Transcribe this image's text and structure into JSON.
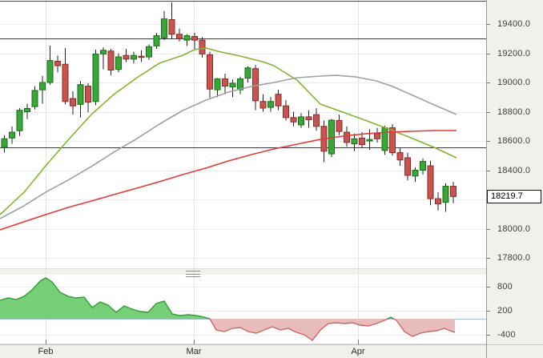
{
  "price_axis": {
    "last_price_label": "18219.7",
    "tick_values": [
      19400,
      19200,
      19000,
      18800,
      18600,
      18400,
      18200,
      18000,
      17800
    ],
    "tick_labels": [
      "19400.0",
      "19200.0",
      "19000.0",
      "18800.0",
      "18600.0",
      "18400.0",
      "",
      "18000.0",
      "17800.0"
    ]
  },
  "oscillator_axis": {
    "tick_values": [
      800,
      200,
      -400
    ],
    "tick_labels": [
      "800",
      "200",
      "-400"
    ]
  },
  "time_axis": {
    "labels": [
      "Feb",
      "Mar",
      "Apr"
    ]
  },
  "colors": {
    "background": "#ffffff",
    "axis_panel": "#f1f0ec",
    "axis_separator": "#9a9a96",
    "grid_h": "#ececec",
    "grid_v": "#e2e2e2",
    "frame": "#4a4a4a",
    "level_line": "#3b3b3b",
    "candle_up_fill": "#3aa63a",
    "candle_up_border": "#157015",
    "candle_down_fill": "#c75450",
    "candle_down_border": "#8f2a28",
    "wick": "#222222",
    "ma_fast": "#85b430",
    "ma_medium": "#a0a0a0",
    "ma_slow": "#e23b34",
    "osc_pos_fill": "#77d077",
    "osc_pos_line": "#2e9e2e",
    "osc_neg_fill": "#e9bcbc",
    "osc_neg_line": "#cc6666",
    "zero_line": "#9bbcdb",
    "axis_text": "#3f3f3f",
    "tick_mark": "#777777"
  },
  "chart_data": [
    {
      "type": "candlestick",
      "panel": "main",
      "title": "",
      "ylim": [
        17800,
        19400
      ],
      "grid": true,
      "last_price": 18219.7,
      "hlines": [
        19300,
        18555
      ],
      "months": [
        {
          "label": "Feb",
          "x": 57
        },
        {
          "label": "Mar",
          "x": 242
        },
        {
          "label": "Apr",
          "x": 447
        }
      ],
      "x_start": 5,
      "x_step": 9.5,
      "candles": [
        [
          18555,
          18640,
          18520,
          18615
        ],
        [
          18620,
          18700,
          18580,
          18660
        ],
        [
          18670,
          18825,
          18635,
          18810
        ],
        [
          18800,
          18855,
          18750,
          18822
        ],
        [
          18835,
          18975,
          18815,
          18945
        ],
        [
          18950,
          19045,
          18855,
          19000
        ],
        [
          19000,
          19252,
          18985,
          19150
        ],
        [
          19145,
          19185,
          19070,
          19115
        ],
        [
          19125,
          19235,
          18850,
          18870
        ],
        [
          18890,
          18940,
          18780,
          18840
        ],
        [
          18850,
          19010,
          18760,
          18985
        ],
        [
          18975,
          18995,
          18795,
          18865
        ],
        [
          18870,
          19225,
          18845,
          19195
        ],
        [
          19195,
          19240,
          19090,
          19220
        ],
        [
          19215,
          19230,
          19050,
          19085
        ],
        [
          19090,
          19200,
          19070,
          19175
        ],
        [
          19185,
          19230,
          19140,
          19160
        ],
        [
          19160,
          19210,
          19130,
          19185
        ],
        [
          19180,
          19220,
          19140,
          19175
        ],
        [
          19175,
          19260,
          19155,
          19245
        ],
        [
          19250,
          19340,
          19230,
          19320
        ],
        [
          19305,
          19490,
          19290,
          19435
        ],
        [
          19430,
          19548,
          19300,
          19330
        ],
        [
          19330,
          19370,
          19280,
          19300
        ],
        [
          19290,
          19330,
          19250,
          19320
        ],
        [
          19315,
          19340,
          19230,
          19290
        ],
        [
          19290,
          19310,
          19170,
          19195
        ],
        [
          19190,
          19210,
          18895,
          18955
        ],
        [
          18950,
          19030,
          18900,
          19025
        ],
        [
          19025,
          19060,
          18920,
          18975
        ],
        [
          18970,
          19020,
          18900,
          18995
        ],
        [
          18950,
          19040,
          18920,
          19025
        ],
        [
          19030,
          19110,
          19000,
          19100
        ],
        [
          19095,
          19120,
          18810,
          18875
        ],
        [
          18870,
          18920,
          18800,
          18825
        ],
        [
          18830,
          18900,
          18800,
          18870
        ],
        [
          18920,
          18950,
          18810,
          18840
        ],
        [
          18840,
          18880,
          18740,
          18760
        ],
        [
          18760,
          18800,
          18700,
          18730
        ],
        [
          18710,
          18790,
          18690,
          18765
        ],
        [
          18765,
          18810,
          18690,
          18745
        ],
        [
          18780,
          18825,
          18670,
          18700
        ],
        [
          18700,
          18740,
          18455,
          18530
        ],
        [
          18512,
          18750,
          18490,
          18742
        ],
        [
          18740,
          18780,
          18640,
          18665
        ],
        [
          18660,
          18700,
          18560,
          18590
        ],
        [
          18580,
          18650,
          18530,
          18615
        ],
        [
          18620,
          18660,
          18550,
          18575
        ],
        [
          18600,
          18680,
          18540,
          18610
        ],
        [
          18650,
          18690,
          18590,
          18615
        ],
        [
          18535,
          18705,
          18505,
          18690
        ],
        [
          18690,
          18715,
          18500,
          18520
        ],
        [
          18520,
          18555,
          18430,
          18470
        ],
        [
          18485,
          18520,
          18330,
          18365
        ],
        [
          18360,
          18420,
          18320,
          18400
        ],
        [
          18400,
          18480,
          18370,
          18460
        ],
        [
          18430,
          18465,
          18160,
          18205
        ],
        [
          18205,
          18250,
          18125,
          18170
        ],
        [
          18180,
          18310,
          18115,
          18290
        ],
        [
          18290,
          18320,
          18175,
          18220
        ]
      ],
      "series": [
        {
          "name": "ma-fast",
          "points": [
            [
              0,
              18096
            ],
            [
              30,
              18249
            ],
            [
              57,
              18430
            ],
            [
              85,
              18606
            ],
            [
              114,
              18781
            ],
            [
              142,
              18918
            ],
            [
              171,
              19033
            ],
            [
              199,
              19132
            ],
            [
              228,
              19186
            ],
            [
              243,
              19225
            ],
            [
              257,
              19236
            ],
            [
              271,
              19214
            ],
            [
              300,
              19181
            ],
            [
              328,
              19142
            ],
            [
              342,
              19115
            ],
            [
              371,
              19016
            ],
            [
              400,
              18852
            ],
            [
              428,
              18797
            ],
            [
              456,
              18742
            ],
            [
              485,
              18682
            ],
            [
              513,
              18622
            ],
            [
              542,
              18556
            ],
            [
              570,
              18485
            ]
          ]
        },
        {
          "name": "ma-medium",
          "points": [
            [
              0,
              18069
            ],
            [
              30,
              18156
            ],
            [
              57,
              18250
            ],
            [
              85,
              18332
            ],
            [
              114,
              18425
            ],
            [
              142,
              18523
            ],
            [
              171,
              18616
            ],
            [
              199,
              18715
            ],
            [
              228,
              18808
            ],
            [
              257,
              18879
            ],
            [
              285,
              18934
            ],
            [
              314,
              18973
            ],
            [
              342,
              19000
            ],
            [
              371,
              19033
            ],
            [
              400,
              19044
            ],
            [
              420,
              19049
            ],
            [
              445,
              19038
            ],
            [
              470,
              19011
            ],
            [
              490,
              18973
            ],
            [
              513,
              18918
            ],
            [
              542,
              18847
            ],
            [
              570,
              18781
            ]
          ]
        },
        {
          "name": "ma-slow",
          "points": [
            [
              0,
              17992
            ],
            [
              30,
              18047
            ],
            [
              57,
              18096
            ],
            [
              85,
              18145
            ],
            [
              114,
              18189
            ],
            [
              142,
              18233
            ],
            [
              171,
              18277
            ],
            [
              199,
              18321
            ],
            [
              228,
              18370
            ],
            [
              257,
              18414
            ],
            [
              285,
              18463
            ],
            [
              314,
              18507
            ],
            [
              342,
              18545
            ],
            [
              371,
              18578
            ],
            [
              400,
              18611
            ],
            [
              428,
              18633
            ],
            [
              456,
              18649
            ],
            [
              485,
              18660
            ],
            [
              513,
              18666
            ],
            [
              542,
              18671
            ],
            [
              570,
              18671
            ]
          ]
        }
      ]
    },
    {
      "type": "area",
      "panel": "lower",
      "title": "",
      "ylim": [
        -600,
        1100
      ],
      "zero_line": 0,
      "points": [
        [
          0,
          460
        ],
        [
          10,
          520
        ],
        [
          20,
          480
        ],
        [
          30,
          560
        ],
        [
          40,
          720
        ],
        [
          50,
          940
        ],
        [
          57,
          1020
        ],
        [
          65,
          920
        ],
        [
          75,
          660
        ],
        [
          85,
          560
        ],
        [
          95,
          520
        ],
        [
          105,
          540
        ],
        [
          115,
          280
        ],
        [
          125,
          420
        ],
        [
          135,
          340
        ],
        [
          145,
          160
        ],
        [
          155,
          320
        ],
        [
          165,
          240
        ],
        [
          175,
          180
        ],
        [
          185,
          160
        ],
        [
          195,
          380
        ],
        [
          205,
          440
        ],
        [
          215,
          120
        ],
        [
          225,
          80
        ],
        [
          235,
          100
        ],
        [
          245,
          80
        ],
        [
          255,
          40
        ],
        [
          262,
          0
        ],
        [
          270,
          -280
        ],
        [
          280,
          -320
        ],
        [
          290,
          -240
        ],
        [
          300,
          -220
        ],
        [
          310,
          -320
        ],
        [
          320,
          -360
        ],
        [
          330,
          -280
        ],
        [
          340,
          -200
        ],
        [
          350,
          -280
        ],
        [
          360,
          -240
        ],
        [
          370,
          -340
        ],
        [
          380,
          -400
        ],
        [
          390,
          -540
        ],
        [
          400,
          -280
        ],
        [
          410,
          -120
        ],
        [
          420,
          -100
        ],
        [
          430,
          -120
        ],
        [
          440,
          -100
        ],
        [
          450,
          -160
        ],
        [
          460,
          -180
        ],
        [
          470,
          -120
        ],
        [
          480,
          -40
        ],
        [
          488,
          40
        ],
        [
          495,
          -40
        ],
        [
          505,
          -320
        ],
        [
          515,
          -440
        ],
        [
          525,
          -360
        ],
        [
          535,
          -320
        ],
        [
          545,
          -300
        ],
        [
          555,
          -240
        ],
        [
          562,
          -300
        ],
        [
          568,
          -340
        ]
      ]
    }
  ]
}
